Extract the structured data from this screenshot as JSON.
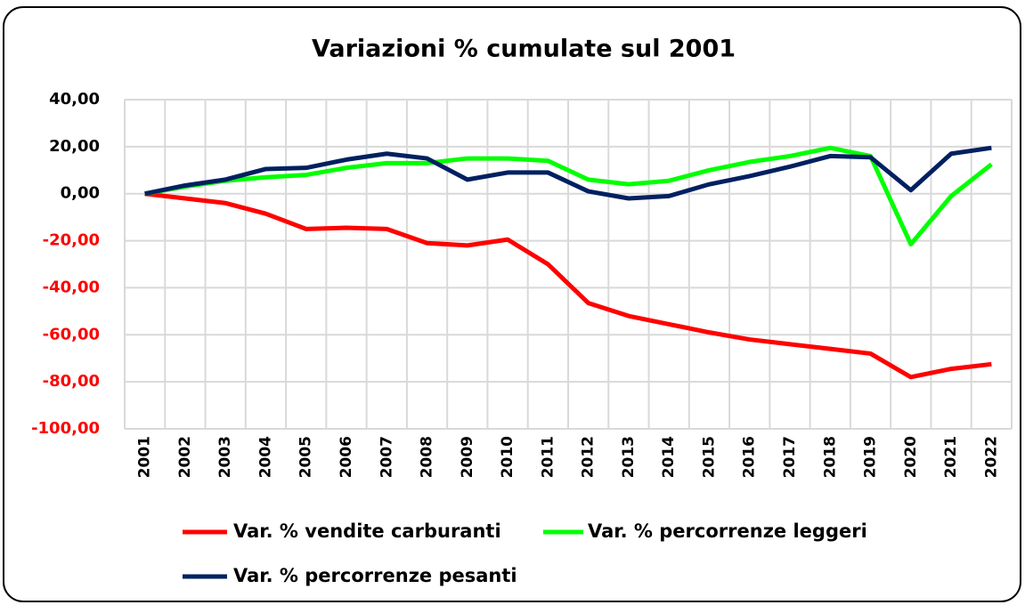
{
  "chart_data": {
    "type": "line",
    "title": "Variazioni % cumulate sul 2001",
    "categories": [
      "2001",
      "2002",
      "2003",
      "2004",
      "2005",
      "2006",
      "2007",
      "2008",
      "2009",
      "2010",
      "2011",
      "2012",
      "2013",
      "2014",
      "2015",
      "2016",
      "2017",
      "2018",
      "2019",
      "2020",
      "2021",
      "2022"
    ],
    "series": [
      {
        "name": "Var. % vendite carburanti",
        "color": "#ff0000",
        "values": [
          0,
          -2,
          -4,
          -8.5,
          -15,
          -14.5,
          -15,
          -21,
          -22,
          -19.5,
          -30,
          -46.5,
          -52,
          -55.5,
          -59,
          -62,
          -64,
          -66,
          -68,
          -78,
          -74.5,
          -72.5
        ]
      },
      {
        "name": "Var. % percorrenze leggeri",
        "color": "#00ff00",
        "values": [
          0,
          3,
          5.5,
          7,
          8,
          11,
          13,
          13,
          15,
          15,
          14,
          6,
          4,
          5.5,
          10,
          13.5,
          16,
          19.5,
          16,
          -21.5,
          -1,
          12.5
        ]
      },
      {
        "name": "Var. % percorrenze pesanti",
        "color": "#002060",
        "values": [
          0,
          3.5,
          6,
          10.5,
          11,
          14.5,
          17,
          15,
          6,
          9,
          9,
          1,
          -2,
          -1,
          4,
          7.5,
          11.5,
          16,
          15.5,
          1.5,
          17,
          19.5
        ]
      }
    ],
    "ylim": [
      -100,
      40
    ],
    "yticks": [
      {
        "value": -100,
        "label": "-100,00"
      },
      {
        "value": -80,
        "label": "-80,00"
      },
      {
        "value": -60,
        "label": "-60,00"
      },
      {
        "value": -40,
        "label": "-40,00"
      },
      {
        "value": -20,
        "label": "-20,00"
      },
      {
        "value": 0,
        "label": "0,00"
      },
      {
        "value": 20,
        "label": "20,00"
      },
      {
        "value": 40,
        "label": "40,00"
      }
    ],
    "grid": true
  }
}
